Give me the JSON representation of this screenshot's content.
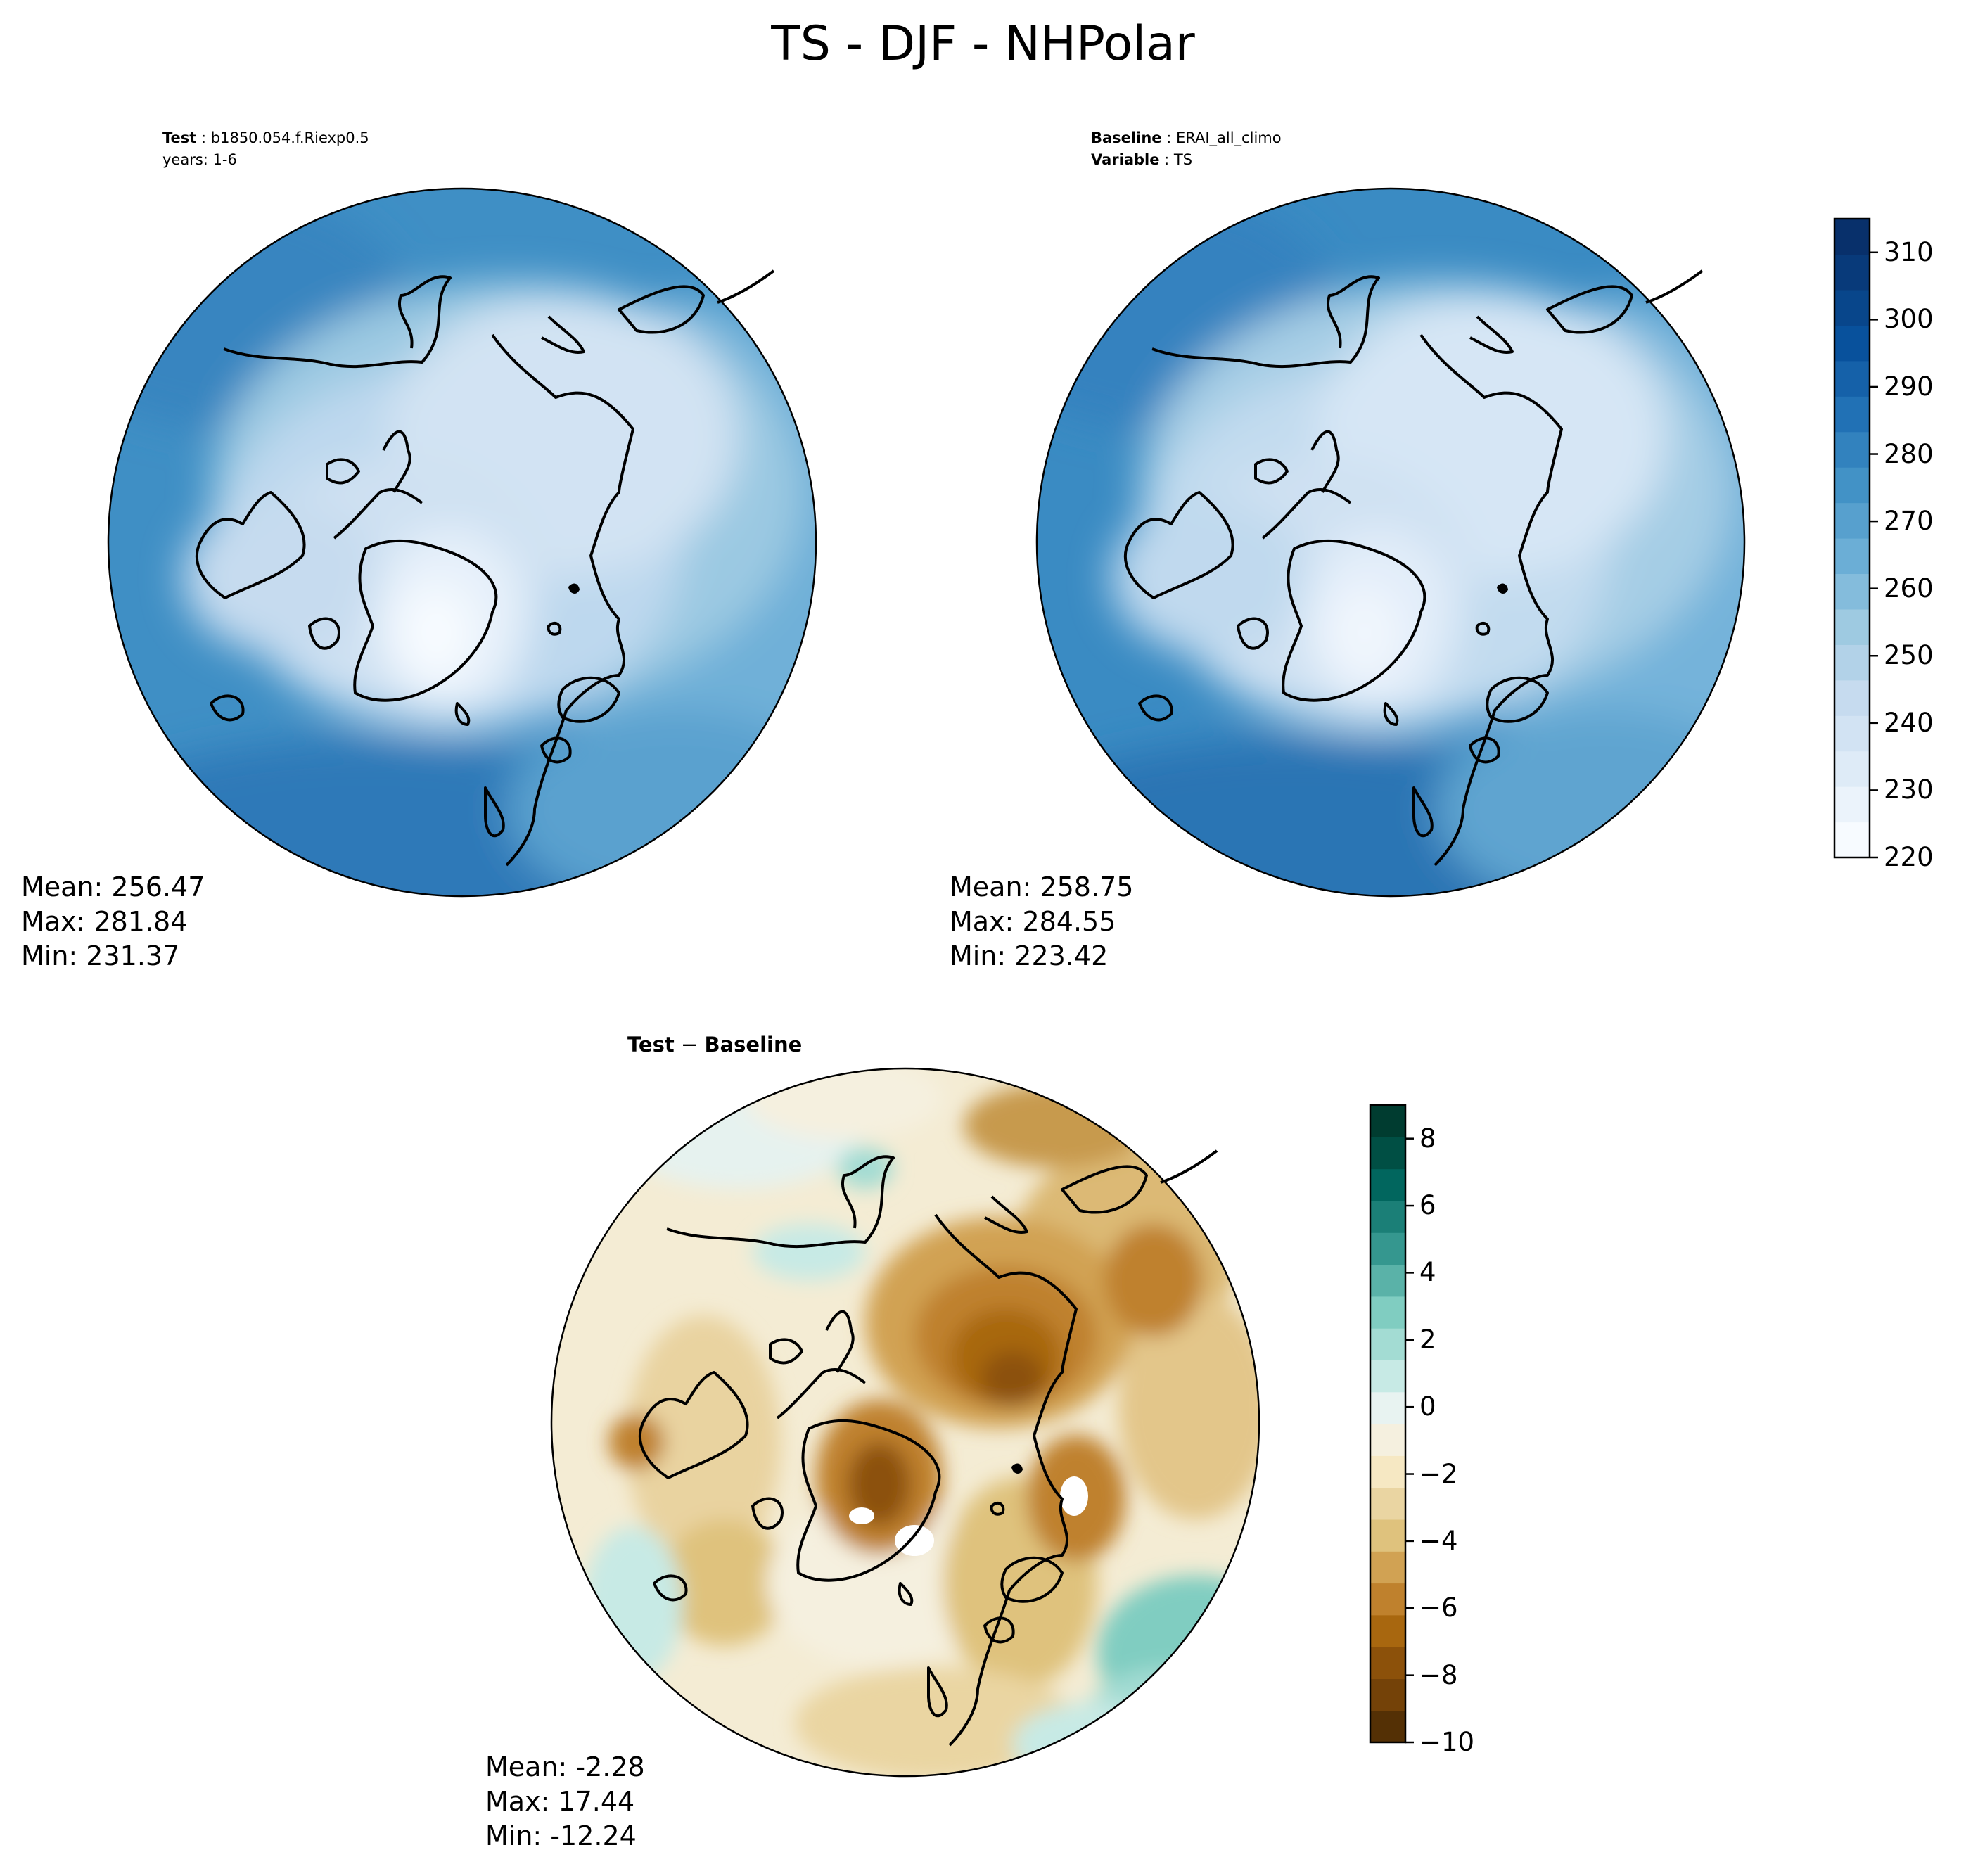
{
  "figure": {
    "title": "TS - DJF - NHPolar"
  },
  "panels": {
    "test": {
      "label": "Test",
      "case": "b1850.054.f.Riexp0.5",
      "years": "years: 1-6",
      "mean": "Mean: 256.47",
      "max": "Max: 281.84",
      "min": "Min: 231.37"
    },
    "baseline": {
      "label": "Baseline",
      "case": "ERAI_all_climo",
      "variable_label": "Variable",
      "variable": "TS",
      "mean": "Mean: 258.75",
      "max": "Max: 284.55",
      "min": "Min: 223.42"
    },
    "diff": {
      "title_left": "Test",
      "title_sep": " − ",
      "title_right": "Baseline",
      "mean": "Mean: -2.28",
      "max": "Max: 17.44",
      "min": "Min: -12.24"
    }
  },
  "colorbars": {
    "absolute": {
      "colormap": "Blues",
      "colors": [
        "#f7fbff",
        "#ebf3fb",
        "#deebf7",
        "#d2e3f3",
        "#c6dbef",
        "#b2d2e8",
        "#9ecae1",
        "#84bcdc",
        "#6baed6",
        "#57a0ce",
        "#4292c6",
        "#3282be",
        "#2171b5",
        "#1561a9",
        "#08519c",
        "#08468b",
        "#083a7a",
        "#08306b"
      ],
      "range": [
        220,
        315
      ],
      "ticks": [
        "220",
        "230",
        "240",
        "250",
        "260",
        "270",
        "280",
        "290",
        "300",
        "310"
      ]
    },
    "difference": {
      "colormap": "BrBG",
      "colors": [
        "#543005",
        "#744208",
        "#8c510a",
        "#a8670f",
        "#bf812d",
        "#d1a253",
        "#dfc27d",
        "#ead5a2",
        "#f6e8c3",
        "#f5f0df",
        "#e8f3f1",
        "#c7eae5",
        "#a3dcd3",
        "#80cdc1",
        "#5ab2a8",
        "#35978f",
        "#1b7f77",
        "#01665e",
        "#004f44",
        "#003c30"
      ],
      "range": [
        -10,
        9
      ],
      "ticks": [
        "−10",
        "−8",
        "−6",
        "−4",
        "−2",
        "0",
        "2",
        "4",
        "6",
        "8"
      ]
    }
  }
}
